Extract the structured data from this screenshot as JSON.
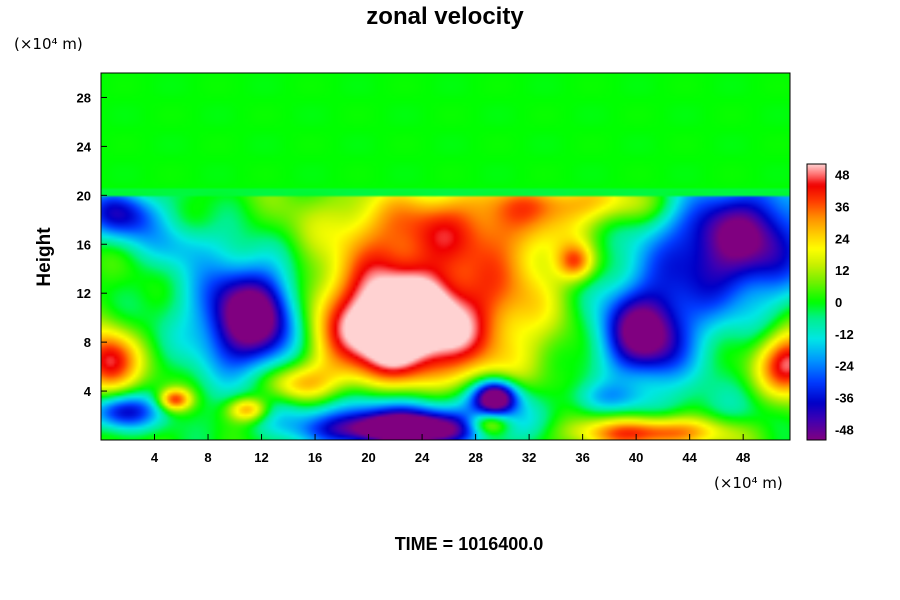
{
  "chart_data": {
    "type": "heatmap",
    "title": "zonal velocity",
    "ylabel": "Height",
    "xunit": "(×10⁴ m)",
    "yunit": "(×10⁴ m)",
    "xlim": [
      0,
      51.5
    ],
    "ylim": [
      0,
      30
    ],
    "xticks": [
      "4",
      "8",
      "12",
      "16",
      "20",
      "24",
      "28",
      "32",
      "36",
      "40",
      "44",
      "48"
    ],
    "yticks": [
      "4",
      "8",
      "12",
      "16",
      "20",
      "24",
      "28"
    ],
    "colorbar": {
      "range": [
        -52,
        52
      ],
      "ticks": [
        "48",
        "36",
        "24",
        "12",
        "0",
        "-12",
        "-24",
        "-36",
        "-48"
      ]
    },
    "upper_layer": {
      "from_height": 20,
      "value": 0
    },
    "features": [
      {
        "x": 22.5,
        "y": 9.5,
        "rx": 6.5,
        "ry": 5.0,
        "value": 55
      },
      {
        "x": 22.5,
        "y": 10.5,
        "rx": 12,
        "ry": 9,
        "value": 18
      },
      {
        "x": 26.5,
        "y": 17.5,
        "rx": 9,
        "ry": 3.0,
        "value": 24
      },
      {
        "x": 36,
        "y": 19.5,
        "rx": 7,
        "ry": 1.8,
        "value": 22
      },
      {
        "x": 35.5,
        "y": 14.5,
        "rx": 1.4,
        "ry": 1.5,
        "value": 30
      },
      {
        "x": 11.5,
        "y": 9.8,
        "rx": 3.6,
        "ry": 4.2,
        "value": -58
      },
      {
        "x": 10.5,
        "y": 11,
        "rx": 6,
        "ry": 6,
        "value": -20
      },
      {
        "x": 48,
        "y": 16.5,
        "rx": 5.5,
        "ry": 5.0,
        "value": -52
      },
      {
        "x": 40.5,
        "y": 8.5,
        "rx": 3.2,
        "ry": 3.6,
        "value": -50
      },
      {
        "x": 42,
        "y": 12,
        "rx": 6,
        "ry": 7,
        "value": -18
      },
      {
        "x": 1.5,
        "y": 18.5,
        "rx": 3.0,
        "ry": 2.2,
        "value": -40
      },
      {
        "x": 0.5,
        "y": 6.3,
        "rx": 2.2,
        "ry": 2.6,
        "value": 46
      },
      {
        "x": 51.5,
        "y": 6.3,
        "rx": 2.4,
        "ry": 2.6,
        "value": 48
      },
      {
        "x": 22.5,
        "y": 0.8,
        "rx": 6.0,
        "ry": 1.4,
        "value": -62
      },
      {
        "x": 22.5,
        "y": 2.3,
        "rx": 10,
        "ry": 2.5,
        "value": -34
      },
      {
        "x": 29.5,
        "y": 3.5,
        "rx": 1.6,
        "ry": 1.4,
        "value": -60
      },
      {
        "x": 29,
        "y": 1.3,
        "rx": 1.6,
        "ry": 1.0,
        "value": 34
      },
      {
        "x": 41,
        "y": 0.6,
        "rx": 5.5,
        "ry": 1.3,
        "value": 42
      },
      {
        "x": 11,
        "y": 2.5,
        "rx": 1.5,
        "ry": 1.0,
        "value": 34
      },
      {
        "x": 14.5,
        "y": 4.5,
        "rx": 3.0,
        "ry": 1.6,
        "value": 26
      },
      {
        "x": 5.5,
        "y": 3.3,
        "rx": 1.2,
        "ry": 0.9,
        "value": 38
      },
      {
        "x": 1.5,
        "y": 2.3,
        "rx": 2.6,
        "ry": 1.5,
        "value": -42
      },
      {
        "x": 38,
        "y": 3.5,
        "rx": 3.0,
        "ry": 1.2,
        "value": -12
      },
      {
        "x": 46,
        "y": 2.5,
        "rx": 5.0,
        "ry": 2.0,
        "value": -6
      },
      {
        "x": 31,
        "y": 13,
        "rx": 3.5,
        "ry": 4.0,
        "value": 10
      },
      {
        "x": 6,
        "y": 16,
        "rx": 3.0,
        "ry": 2.0,
        "value": -14
      },
      {
        "x": 17,
        "y": 16,
        "rx": 1.8,
        "ry": 3.5,
        "value": -4
      }
    ]
  },
  "footer": {
    "time_label": "TIME = 1016400.0"
  }
}
